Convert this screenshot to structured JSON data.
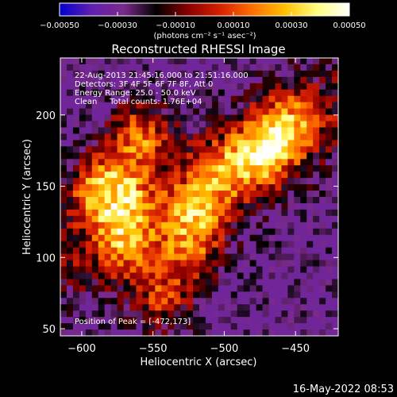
{
  "chart_data": {
    "type": "heatmap",
    "title": "Reconstructed RHESSI Image",
    "xlabel": "Heliocentric X (arcsec)",
    "ylabel": "Heliocentric Y (arcsec)",
    "xlim": [
      -615,
      -420
    ],
    "ylim": [
      45,
      240
    ],
    "x_ticks": [
      -600,
      -550,
      -500,
      -450
    ],
    "y_ticks": [
      50,
      100,
      150,
      200
    ],
    "x_tick_labels": [
      "−600",
      "−550",
      "−500",
      "−450"
    ],
    "y_tick_labels": [
      "50",
      "100",
      "150",
      "200"
    ],
    "grid": false,
    "colorbar": {
      "range": [
        -0.0005,
        0.0005
      ],
      "ticks": [
        -0.0005,
        -0.0003,
        -0.0001,
        0.0001,
        0.0003,
        0.0005
      ],
      "tick_labels": [
        "−0.00050",
        "−0.00030",
        "−0.00010",
        "0.00010",
        "0.00030",
        "0.00050"
      ],
      "units_label": "(photons cm⁻² s⁻¹ asec⁻²)",
      "colormap": [
        "#0000cc",
        "#6020b0",
        "#7a2a8a",
        "#000000",
        "#8a0000",
        "#d82000",
        "#ff7000",
        "#ffc000",
        "#ffff80",
        "#ffffff"
      ]
    },
    "peak": [
      -472,
      173
    ],
    "bright_sources": [
      {
        "x": -560,
        "y": 185,
        "strength": 1.0
      },
      {
        "x": -575,
        "y": 145,
        "strength": 1.0
      },
      {
        "x": -570,
        "y": 110,
        "strength": 0.85
      },
      {
        "x": -520,
        "y": 130,
        "strength": 0.9
      },
      {
        "x": -500,
        "y": 160,
        "strength": 0.7
      },
      {
        "x": -472,
        "y": 173,
        "strength": 1.0
      },
      {
        "x": -455,
        "y": 195,
        "strength": 0.8
      },
      {
        "x": -545,
        "y": 70,
        "strength": 0.7
      },
      {
        "x": -590,
        "y": 150,
        "strength": 0.6
      },
      {
        "x": -525,
        "y": 100,
        "strength": 0.7
      }
    ]
  },
  "annotations": {
    "line1": "22-Aug-2013 21:45:16.000 to 21:51:16.000",
    "line2": "Detectors: 3F 4F 5F 6F 7F 8F, Att 0",
    "line3": "Energy Range: 25.0 - 50.0 keV",
    "line4": "Clean     Total counts: 1.76E+04",
    "peak_text": "Position of Peak = [-472,173]"
  },
  "footer_date": "16-May-2022 08:53"
}
